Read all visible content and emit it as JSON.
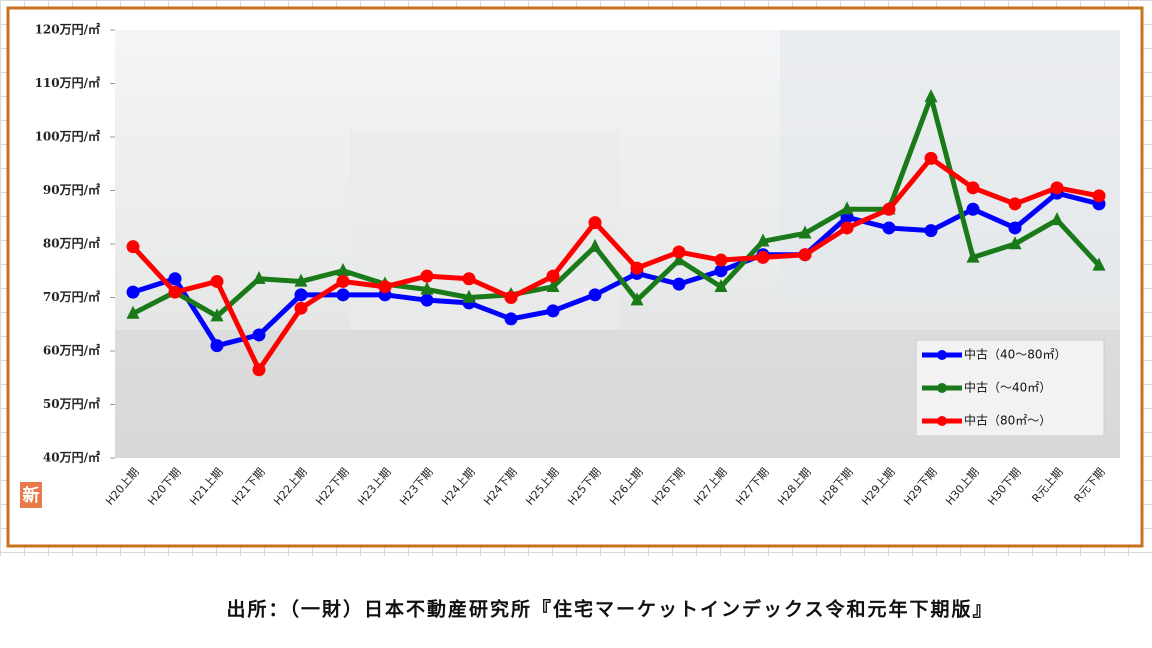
{
  "chart_data": {
    "type": "line",
    "categories": [
      "H20上期",
      "H20下期",
      "H21上期",
      "H21下期",
      "H22上期",
      "H22下期",
      "H23上期",
      "H23下期",
      "H24上期",
      "H24下期",
      "H25上期",
      "H25下期",
      "H26上期",
      "H26下期",
      "H27上期",
      "H27下期",
      "H28上期",
      "H28下期",
      "H29上期",
      "H29下期",
      "H30上期",
      "H30下期",
      "R元上期",
      "R元下期"
    ],
    "series": [
      {
        "name": "中古（40～80㎡）",
        "color": "#0000ff",
        "marker": "circle",
        "values": [
          71,
          73.5,
          61,
          63,
          70.5,
          70.5,
          70.5,
          69.5,
          69,
          66,
          67.5,
          70.5,
          74.5,
          72.5,
          75,
          78,
          78,
          85,
          83,
          82.5,
          86.5,
          83,
          89.5,
          87.5
        ]
      },
      {
        "name": "中古（～40㎡）",
        "color": "#1a7a1a",
        "marker": "triangle",
        "values": [
          67,
          71,
          66.5,
          73.5,
          73,
          75,
          72.5,
          71.5,
          70,
          70.5,
          72,
          79.5,
          69.5,
          77,
          72,
          80.5,
          82,
          86.5,
          86.5,
          107.5,
          77.5,
          80,
          84.5,
          76
        ]
      },
      {
        "name": "中古（80㎡～）",
        "color": "#ff0000",
        "marker": "circle",
        "values": [
          79.5,
          71,
          73,
          56.5,
          68,
          73,
          72,
          74,
          73.5,
          70,
          74,
          84,
          75.5,
          78.5,
          77,
          77.5,
          78,
          83,
          86.5,
          96,
          90.5,
          87.5,
          90.5,
          89
        ]
      }
    ],
    "ylim": [
      40,
      120
    ],
    "yticks": [
      {
        "value": 40,
        "label": "40万円/㎡"
      },
      {
        "value": 50,
        "label": "50万円/㎡"
      },
      {
        "value": 60,
        "label": "60万円/㎡"
      },
      {
        "value": 70,
        "label": "70万円/㎡"
      },
      {
        "value": 80,
        "label": "80万円/㎡"
      },
      {
        "value": 90,
        "label": "90万円/㎡"
      },
      {
        "value": 100,
        "label": "100万円/㎡"
      },
      {
        "value": 110,
        "label": "110万円/㎡"
      },
      {
        "value": 120,
        "label": "120万円/㎡"
      }
    ],
    "legend": "lower right",
    "badge": "新",
    "source": "出所：（一財）日本不動産研究所『住宅マーケットインデックス令和元年下期版』"
  }
}
